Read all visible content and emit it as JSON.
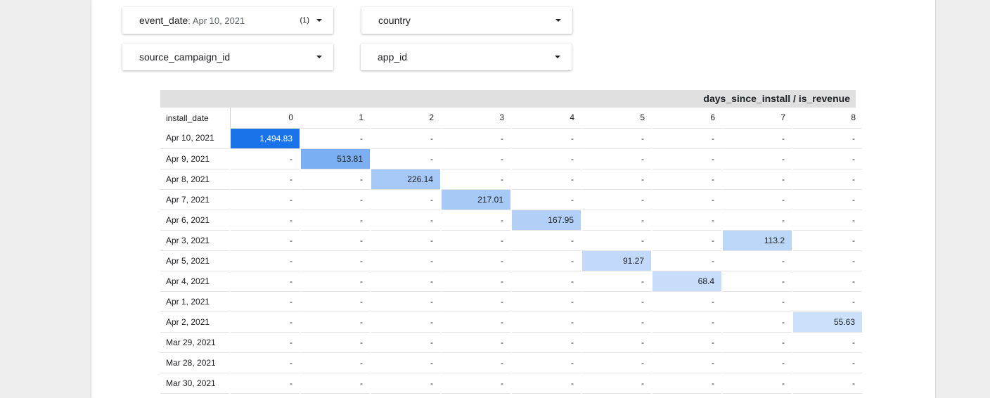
{
  "filters": [
    {
      "label": "event_date",
      "value": "Apr 10, 2021",
      "count": "(1)"
    },
    {
      "label": "country",
      "value": "",
      "count": ""
    },
    {
      "label": "source_campaign_id",
      "value": "",
      "count": ""
    },
    {
      "label": "app_id",
      "value": "",
      "count": ""
    }
  ],
  "pivot": {
    "column_dimension_title": "days_since_install / is_revenue",
    "row_dimension_title": "install_date",
    "columns": [
      "0",
      "1",
      "2",
      "3",
      "4",
      "5",
      "6",
      "7",
      "8"
    ],
    "rows": [
      {
        "date": "Apr 10, 2021",
        "cells": [
          "1,494.83",
          "-",
          "-",
          "-",
          "-",
          "-",
          "-",
          "-",
          "-"
        ]
      },
      {
        "date": "Apr 9, 2021",
        "cells": [
          "-",
          "513.81",
          "-",
          "-",
          "-",
          "-",
          "-",
          "-",
          "-"
        ]
      },
      {
        "date": "Apr 8, 2021",
        "cells": [
          "-",
          "-",
          "226.14",
          "-",
          "-",
          "-",
          "-",
          "-",
          "-"
        ]
      },
      {
        "date": "Apr 7, 2021",
        "cells": [
          "-",
          "-",
          "-",
          "217.01",
          "-",
          "-",
          "-",
          "-",
          "-"
        ]
      },
      {
        "date": "Apr 6, 2021",
        "cells": [
          "-",
          "-",
          "-",
          "-",
          "167.95",
          "-",
          "-",
          "-",
          "-"
        ]
      },
      {
        "date": "Apr 3, 2021",
        "cells": [
          "-",
          "-",
          "-",
          "-",
          "-",
          "-",
          "-",
          "113.2",
          "-"
        ]
      },
      {
        "date": "Apr 5, 2021",
        "cells": [
          "-",
          "-",
          "-",
          "-",
          "-",
          "91.27",
          "-",
          "-",
          "-"
        ]
      },
      {
        "date": "Apr 4, 2021",
        "cells": [
          "-",
          "-",
          "-",
          "-",
          "-",
          "-",
          "68.4",
          "-",
          "-"
        ]
      },
      {
        "date": "Apr 1, 2021",
        "cells": [
          "-",
          "-",
          "-",
          "-",
          "-",
          "-",
          "-",
          "-",
          "-"
        ]
      },
      {
        "date": "Apr 2, 2021",
        "cells": [
          "-",
          "-",
          "-",
          "-",
          "-",
          "-",
          "-",
          "-",
          "55.63"
        ]
      },
      {
        "date": "Mar 29, 2021",
        "cells": [
          "-",
          "-",
          "-",
          "-",
          "-",
          "-",
          "-",
          "-",
          "-"
        ]
      },
      {
        "date": "Mar 28, 2021",
        "cells": [
          "-",
          "-",
          "-",
          "-",
          "-",
          "-",
          "-",
          "-",
          "-"
        ]
      },
      {
        "date": "Mar 30, 2021",
        "cells": [
          "-",
          "-",
          "-",
          "-",
          "-",
          "-",
          "-",
          "-",
          "-"
        ]
      }
    ],
    "heat_max_color": "#1a73e8",
    "heat_min_color": "#ffffff"
  }
}
